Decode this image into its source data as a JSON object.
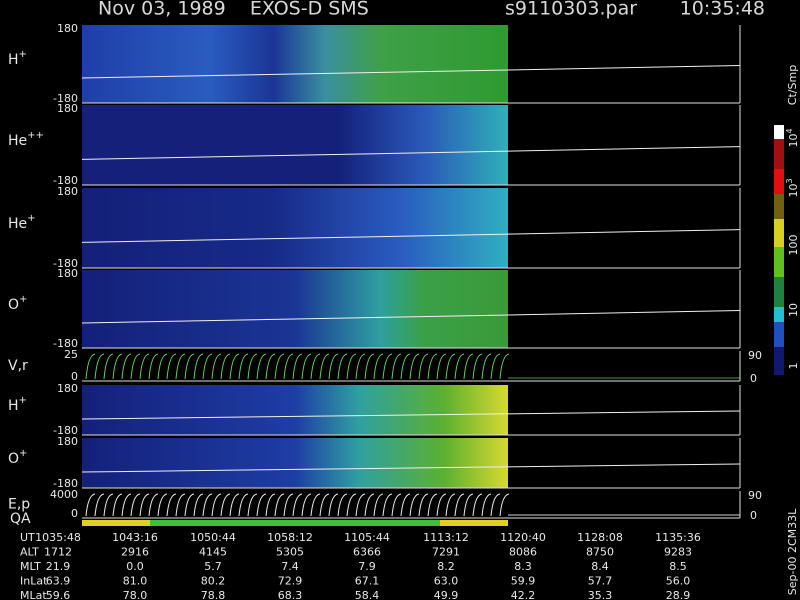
{
  "header": {
    "title": "Nov 03, 1989    EXOS-D SMS",
    "file": "s9110303.par",
    "time": "10:35:48"
  },
  "panels": [
    {
      "label": "H",
      "sup": "+",
      "top": "180",
      "bottom": "-180"
    },
    {
      "label": "He",
      "sup": "++",
      "top": "180",
      "bottom": "-180"
    },
    {
      "label": "He",
      "sup": "+",
      "top": "180",
      "bottom": "-180"
    },
    {
      "label": "O",
      "sup": "+",
      "top": "180",
      "bottom": "-180"
    },
    {
      "label": "V,r",
      "top": "25",
      "bottom": "0",
      "right_top": "90",
      "right_bottom": "0"
    },
    {
      "label": "H",
      "sup": "+",
      "top": "180",
      "bottom": "-180"
    },
    {
      "label": "O",
      "sup": "+",
      "top": "180",
      "bottom": "-180"
    },
    {
      "label": "E,p",
      "top": "4000",
      "bottom": "0",
      "right_top": "90",
      "right_bottom": "0"
    }
  ],
  "qa_label": "QA",
  "colorbar": {
    "unit": "Ct/Smp",
    "labels": [
      {
        "base": "10",
        "exp": "4"
      },
      {
        "base": "10",
        "exp": "3"
      },
      {
        "base": "100"
      },
      {
        "base": "10"
      },
      {
        "base": "1"
      }
    ]
  },
  "table": {
    "rows": [
      [
        "UT",
        "1035:48",
        "1043:16",
        "1050:44",
        "1058:12",
        "1105:44",
        "1113:12",
        "1120:40",
        "1128:08",
        "1135:36"
      ],
      [
        "ALT",
        "1712",
        "2916",
        "4145",
        "5305",
        "6366",
        "7291",
        "8086",
        "8750",
        "9283"
      ],
      [
        "MLT",
        "21.9",
        "0.0",
        "5.7",
        "7.4",
        "7.9",
        "8.2",
        "8.3",
        "8.4",
        "8.5"
      ],
      [
        "InLat",
        "63.9",
        "81.0",
        "80.2",
        "72.9",
        "67.1",
        "63.0",
        "59.9",
        "57.7",
        "56.0"
      ],
      [
        "MLat",
        "59.6",
        "78.0",
        "78.8",
        "68.3",
        "58.4",
        "49.9",
        "42.2",
        "35.3",
        "28.9"
      ]
    ]
  },
  "footer": "Sep-00 2CM33L"
}
